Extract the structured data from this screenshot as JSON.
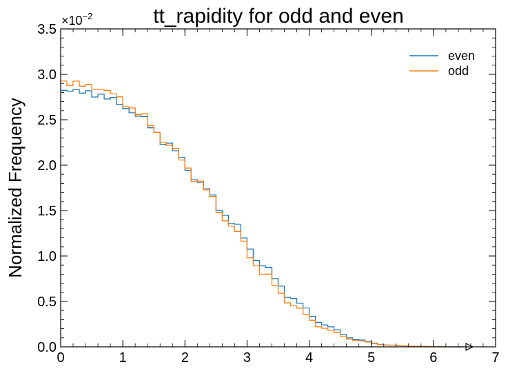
{
  "chart_data": {
    "type": "line",
    "step": true,
    "title": "tt_rapidity for odd and even",
    "xlabel": "",
    "ylabel": "Normalized Frequency",
    "xlim": [
      0,
      7
    ],
    "ylim": [
      0,
      3.5
    ],
    "y_exponent_base": "×10",
    "y_exponent_power": "−2",
    "x_ticks": [
      "0",
      "1",
      "2",
      "3",
      "4",
      "5",
      "6",
      "7"
    ],
    "y_ticks": [
      "0.0",
      "0.5",
      "1.0",
      "1.5",
      "2.0",
      "2.5",
      "3.0",
      "3.5"
    ],
    "legend_position": "top-right",
    "bin_edges": [
      0,
      0.5,
      1.0,
      1.5,
      2.0,
      2.5,
      3.0,
      3.5,
      4.0,
      4.5,
      5.0,
      5.5,
      6.0,
      6.5
    ],
    "series": [
      {
        "name": "even",
        "color": "#1f77b4",
        "values": [
          2.82,
          2.75,
          2.55,
          2.22,
          1.8,
          1.38,
          0.9,
          0.52,
          0.24,
          0.08,
          0.02,
          0.005,
          0.0
        ]
      },
      {
        "name": "odd",
        "color": "#ff7f0e",
        "values": [
          2.9,
          2.82,
          2.58,
          2.22,
          1.8,
          1.33,
          0.82,
          0.45,
          0.2,
          0.07,
          0.02,
          0.005,
          0.0
        ]
      }
    ]
  }
}
